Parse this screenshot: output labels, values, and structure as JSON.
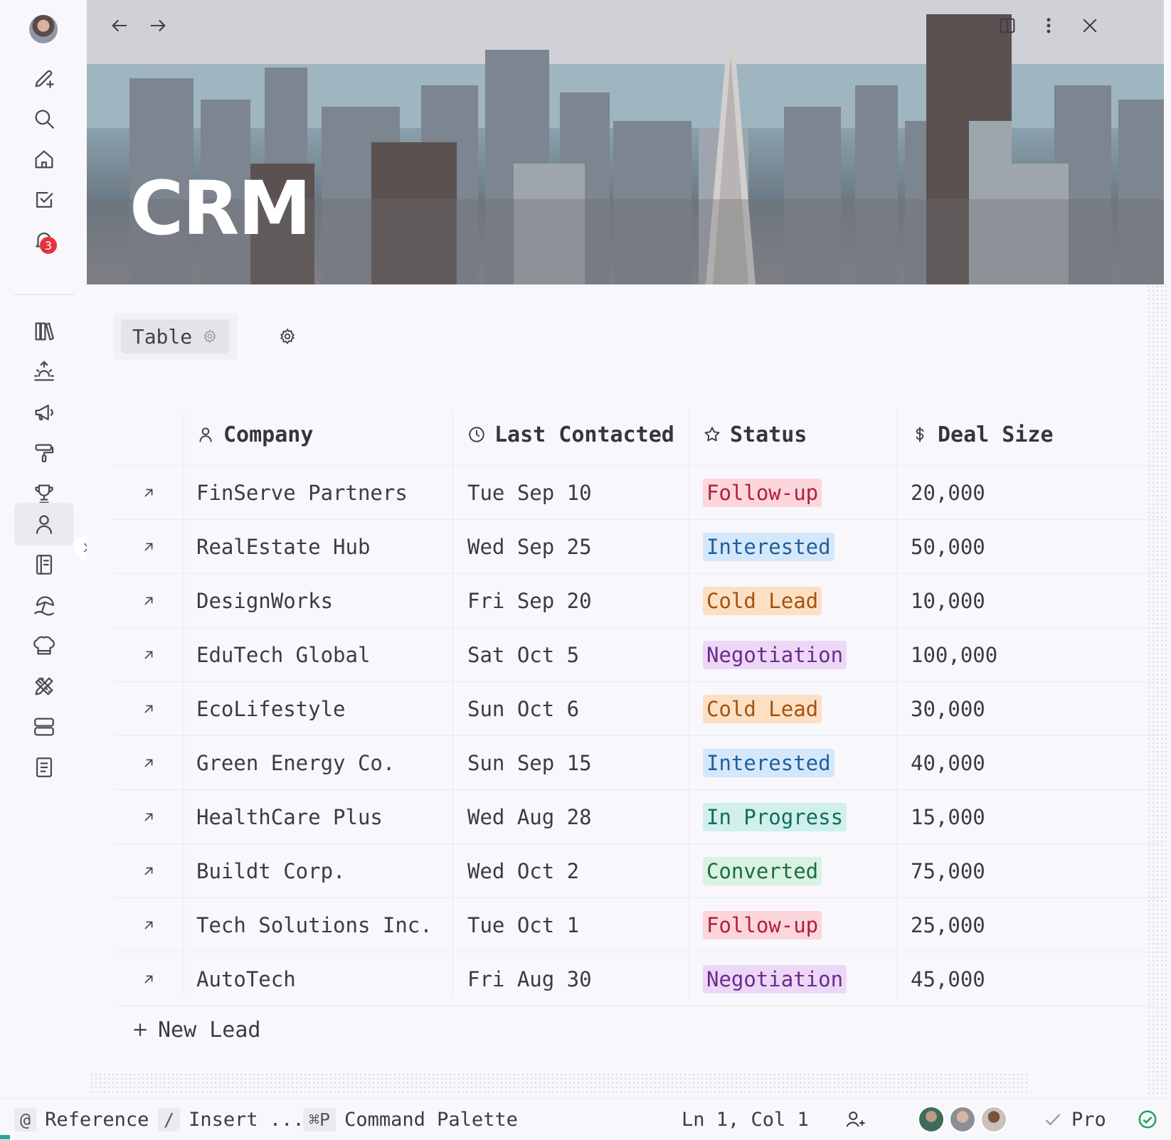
{
  "page": {
    "title": "CRM"
  },
  "sidebar": {
    "notification_count": "3",
    "items": [
      {
        "name": "new-page-icon"
      },
      {
        "name": "search-icon"
      },
      {
        "name": "home-icon"
      },
      {
        "name": "tasks-icon"
      },
      {
        "name": "bell-icon"
      },
      {
        "name": "library-icon"
      },
      {
        "name": "sunrise-icon"
      },
      {
        "name": "megaphone-icon"
      },
      {
        "name": "paint-roller-icon"
      },
      {
        "name": "trophy-icon"
      },
      {
        "name": "person-icon"
      },
      {
        "name": "notebook-icon"
      },
      {
        "name": "beach-icon"
      },
      {
        "name": "chef-hat-icon"
      },
      {
        "name": "design-tools-icon"
      },
      {
        "name": "server-icon"
      },
      {
        "name": "document-icon"
      }
    ]
  },
  "view": {
    "tab_label": "Table"
  },
  "table": {
    "columns": [
      {
        "label": "Company",
        "icon": "person-icon"
      },
      {
        "label": "Last Contacted",
        "icon": "clock-icon"
      },
      {
        "label": "Status",
        "icon": "star-icon"
      },
      {
        "label": "Deal Size",
        "icon": "dollar-icon"
      }
    ],
    "rows": [
      {
        "company": "FinServe Partners",
        "last_contacted": "Tue Sep 10",
        "status": "Follow-up",
        "deal_size": "20,000"
      },
      {
        "company": "RealEstate Hub",
        "last_contacted": "Wed Sep 25",
        "status": "Interested",
        "deal_size": "50,000"
      },
      {
        "company": "DesignWorks",
        "last_contacted": "Fri Sep 20",
        "status": "Cold Lead",
        "deal_size": "10,000"
      },
      {
        "company": "EduTech Global",
        "last_contacted": "Sat Oct 5",
        "status": "Negotiation",
        "deal_size": "100,000"
      },
      {
        "company": "EcoLifestyle",
        "last_contacted": "Sun Oct 6",
        "status": "Cold Lead",
        "deal_size": "30,000"
      },
      {
        "company": "Green Energy Co.",
        "last_contacted": "Sun Sep 15",
        "status": "Interested",
        "deal_size": "40,000"
      },
      {
        "company": "HealthCare Plus",
        "last_contacted": "Wed Aug 28",
        "status": "In Progress",
        "deal_size": "15,000"
      },
      {
        "company": "Buildt Corp.",
        "last_contacted": "Wed Oct 2",
        "status": "Converted",
        "deal_size": "75,000"
      },
      {
        "company": "Tech Solutions Inc.",
        "last_contacted": "Tue Oct 1",
        "status": "Follow-up",
        "deal_size": "25,000"
      },
      {
        "company": "AutoTech",
        "last_contacted": "Fri Aug 30",
        "status": "Negotiation",
        "deal_size": "45,000"
      }
    ],
    "new_row_label": "New Lead"
  },
  "status_colors": {
    "Follow-up": {
      "bg": "#fdd5dc",
      "fg": "#b0203d"
    },
    "Interested": {
      "bg": "#d5e8fb",
      "fg": "#1f5f9c"
    },
    "Cold Lead": {
      "bg": "#fde0c4",
      "fg": "#a2520e"
    },
    "Negotiation": {
      "bg": "#ecd8f6",
      "fg": "#6d2a8e"
    },
    "In Progress": {
      "bg": "#d0f0ec",
      "fg": "#146b5f"
    },
    "Converted": {
      "bg": "#d9f2e3",
      "fg": "#1c6e3d"
    }
  },
  "statusbar": {
    "reference_key": "@",
    "reference_label": "Reference",
    "insert_key": "/",
    "insert_label": "Insert ...",
    "palette_key": "⌘P",
    "palette_label": "Command Palette",
    "cursor_position": "Ln 1, Col 1",
    "plan_label": "Pro"
  }
}
